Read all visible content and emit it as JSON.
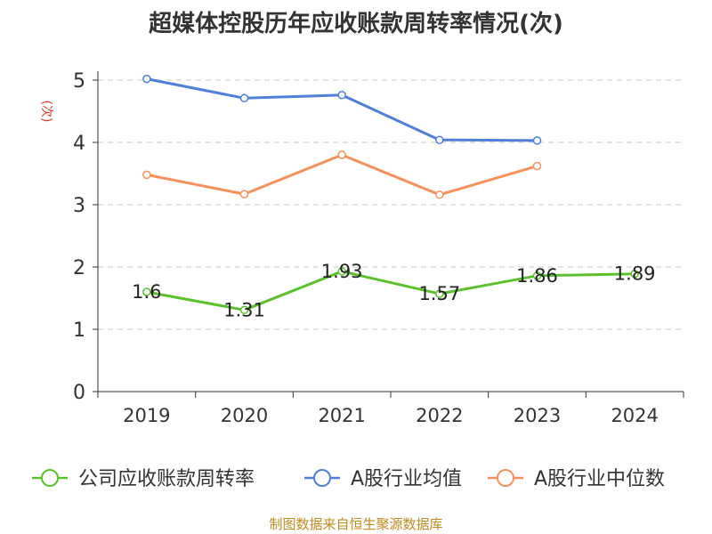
{
  "chart_data": {
    "type": "line",
    "title": "超媒体控股历年应收账款周转率情况(次)",
    "ylabel": "(次)",
    "categories": [
      "2019",
      "2020",
      "2021",
      "2022",
      "2023",
      "2024"
    ],
    "ylim": [
      0,
      5
    ],
    "yticks": [
      0,
      1,
      2,
      3,
      4,
      5
    ],
    "grid": true,
    "legend_position": "bottom",
    "series": [
      {
        "name": "公司应收账款周转率",
        "values": [
          1.6,
          1.31,
          1.93,
          1.57,
          1.86,
          1.89
        ],
        "color": "#5cc02c",
        "labeled": true
      },
      {
        "name": "A股行业均值",
        "values": [
          5.02,
          4.71,
          4.76,
          4.04,
          4.03,
          null
        ],
        "color": "#4f7fd9",
        "labeled": false
      },
      {
        "name": "A股行业中位数",
        "values": [
          3.48,
          3.17,
          3.8,
          3.16,
          3.62,
          null
        ],
        "color": "#f7915b",
        "labeled": false
      }
    ]
  },
  "source": "制图数据来自恒生聚源数据库"
}
